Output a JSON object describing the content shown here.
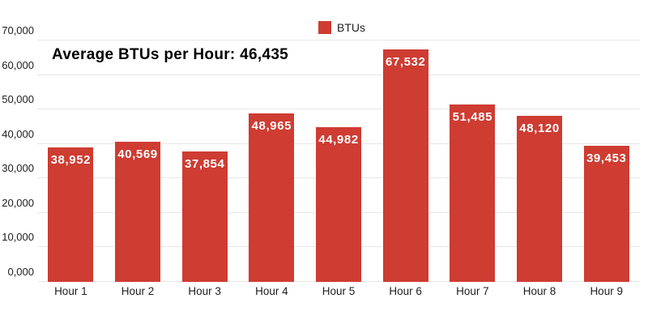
{
  "chart_data": {
    "type": "bar",
    "title": "Average BTUs per Hour: 46,435",
    "average_value": "46,435",
    "legend": {
      "label": "BTUs",
      "position": "top-center",
      "swatch_color": "#ce3c32"
    },
    "categories": [
      "Hour 1",
      "Hour 2",
      "Hour 3",
      "Hour 4",
      "Hour 5",
      "Hour 6",
      "Hour 7",
      "Hour 8",
      "Hour 9"
    ],
    "series": [
      {
        "name": "BTUs",
        "values": [
          38952,
          40569,
          37854,
          48965,
          44982,
          67532,
          51485,
          48120,
          39453
        ],
        "value_labels": [
          "38,952",
          "40,569",
          "37,854",
          "48,965",
          "44,982",
          "67,532",
          "51,485",
          "48,120",
          "39,453"
        ]
      }
    ],
    "xlabel": "",
    "ylabel": "",
    "y_axis": {
      "min": 0,
      "max": 70000,
      "tick_step": 10000,
      "tick_labels": [
        "0,000",
        "10,000",
        "20,000",
        "30,000",
        "40,000",
        "50,000",
        "60,000",
        "70,000"
      ]
    },
    "grid": "horizontal-on",
    "colors": {
      "bar": "#ce3c32",
      "bar_value_text": "#ffffff",
      "gridline": "#e7e7e7",
      "axis_text": "#1d1d1d",
      "title_text": "#000000",
      "background": "#ffffff"
    }
  }
}
